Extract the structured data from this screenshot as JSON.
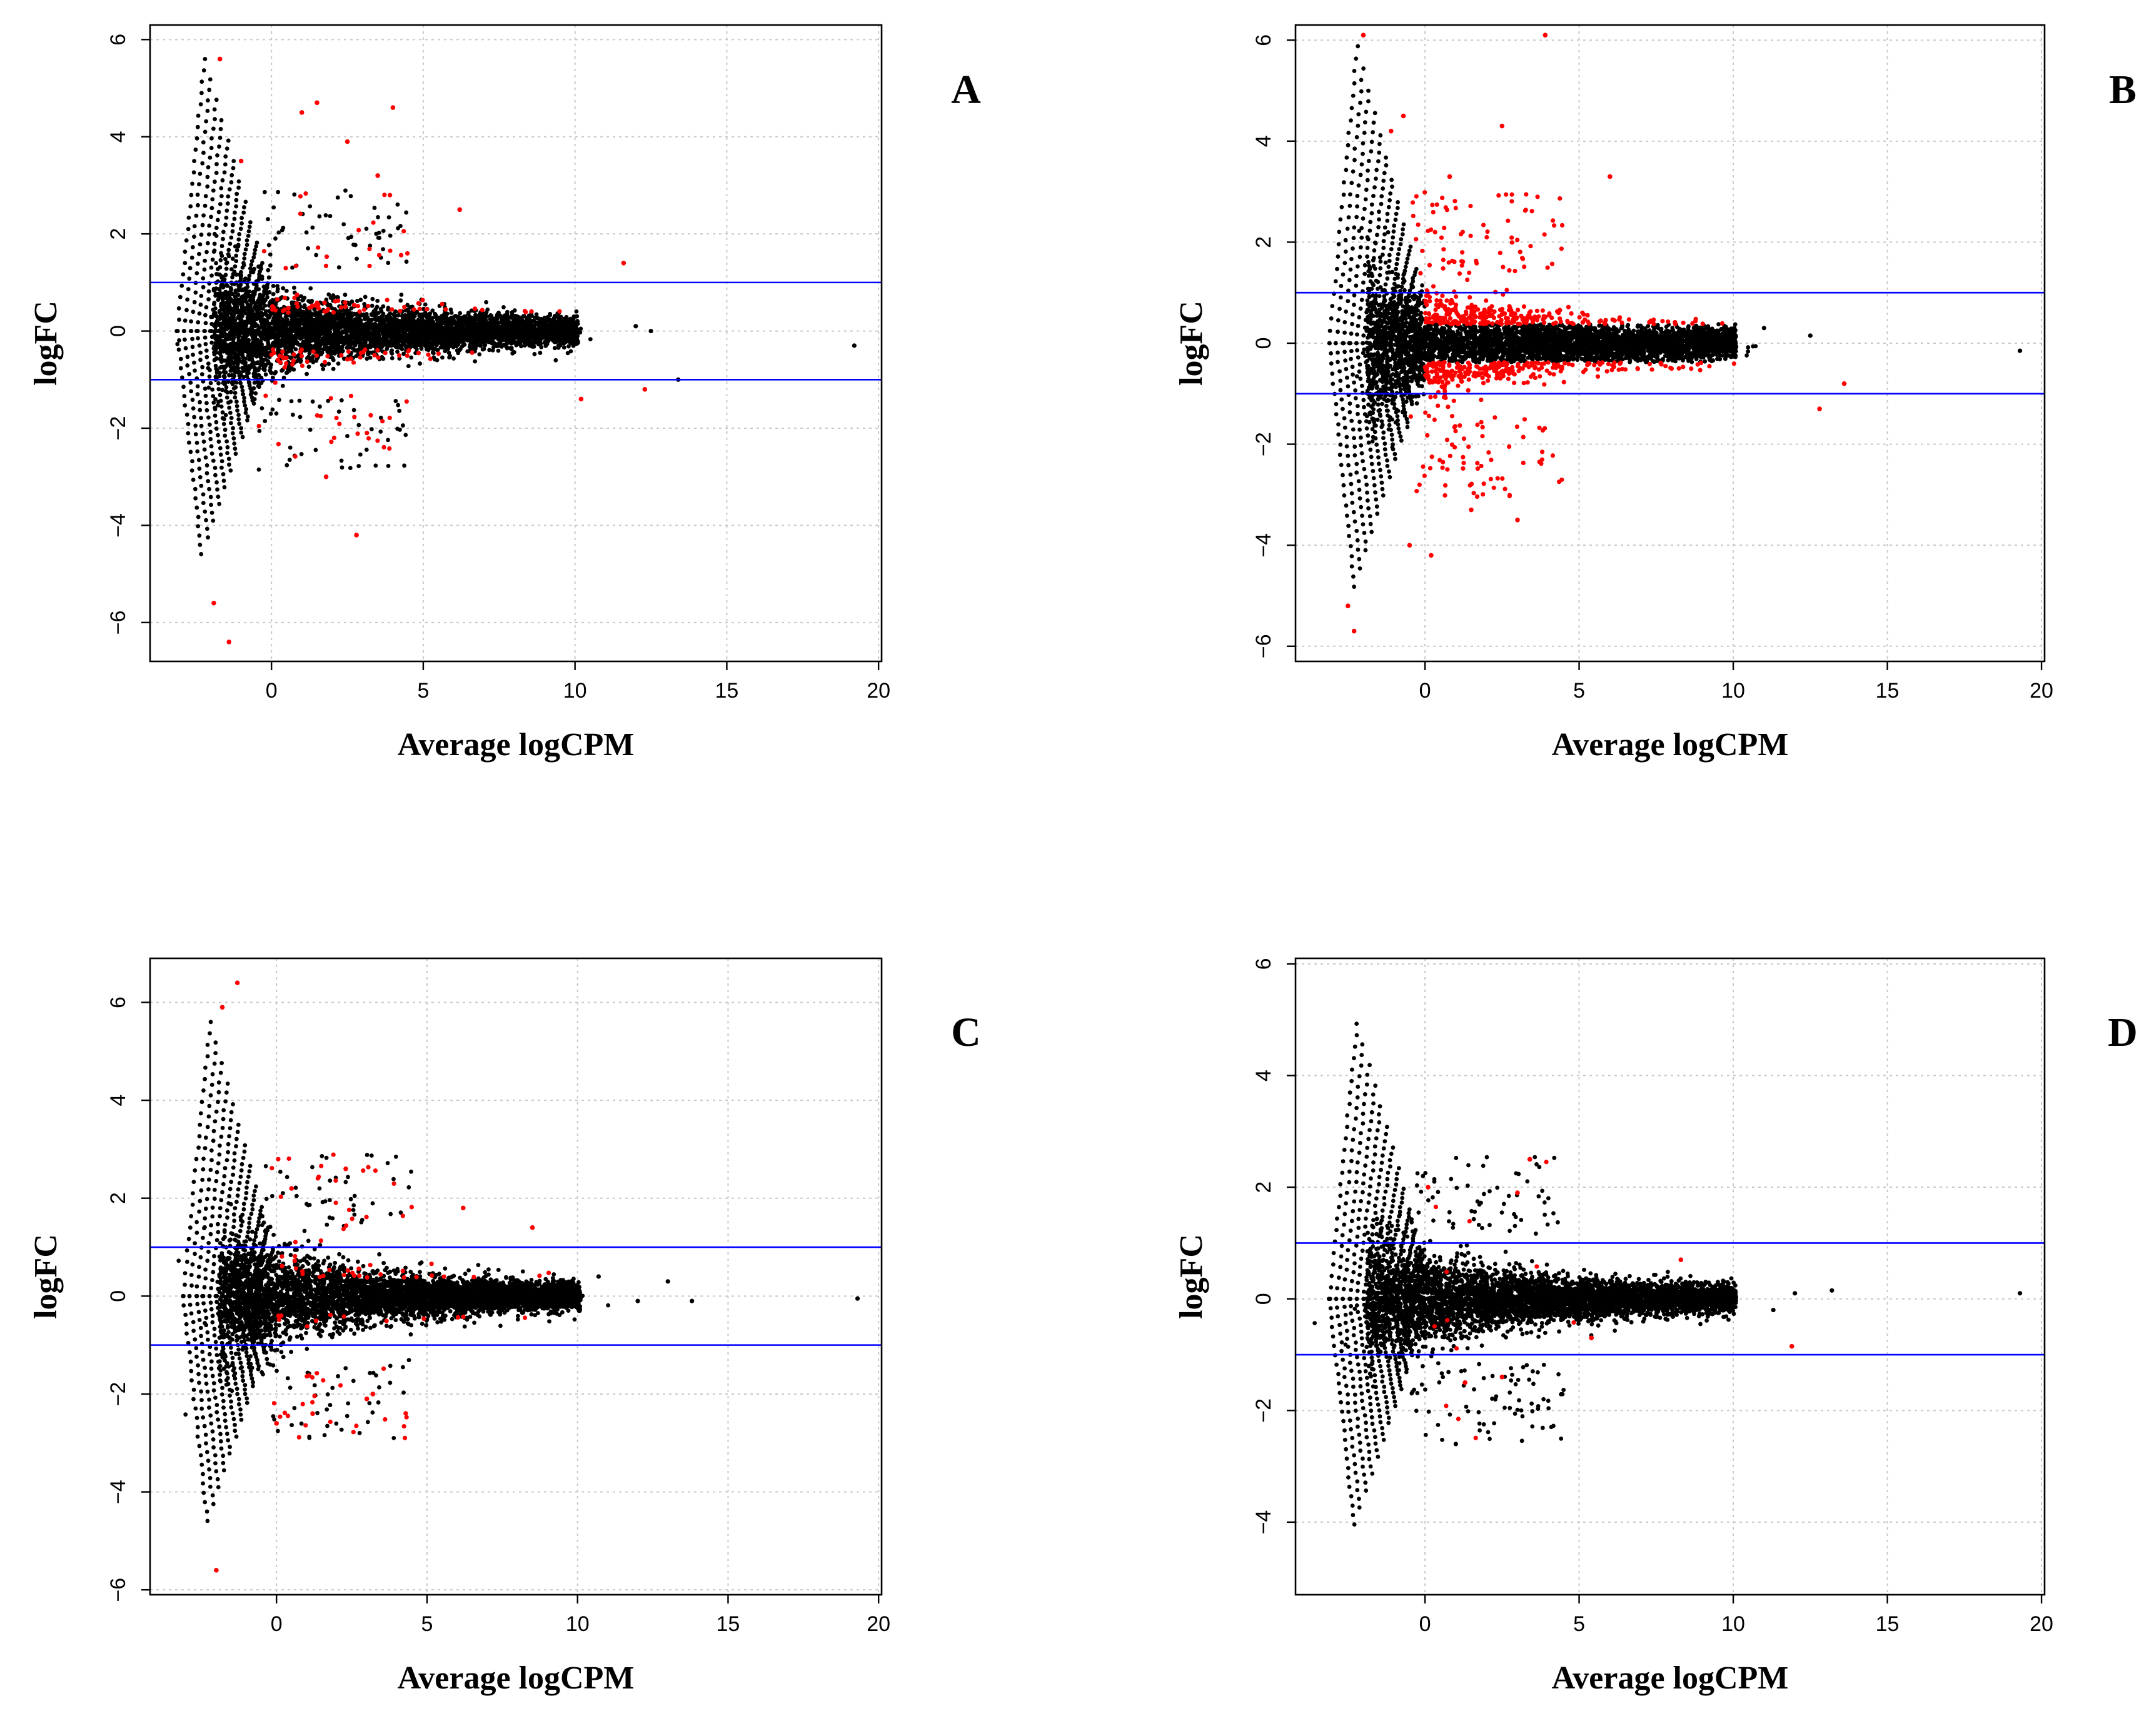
{
  "figure": {
    "dot_colors": {
      "not_significant": "#000000",
      "significant": "#ff0000"
    },
    "threshold_color": "#0000ff",
    "grid_color": "#c8c8c8"
  },
  "chart_data": [
    {
      "panel": "A",
      "type": "scatter",
      "xlabel": "Average logCPM",
      "ylabel": "logFC",
      "xlim": [
        -4,
        20.1
      ],
      "ylim": [
        -6.8,
        6.3
      ],
      "xticks": [
        0,
        5,
        10,
        15,
        20
      ],
      "yticks": [
        -6,
        -4,
        -2,
        0,
        2,
        4,
        6
      ],
      "threshold_lines": [
        1,
        -1
      ],
      "grid": true,
      "red_density": 0.03,
      "red_bias": 0,
      "spread": 1.0,
      "significant_points": [
        [
          -1.7,
          5.6
        ],
        [
          -1.9,
          -5.6
        ],
        [
          -1.4,
          -6.4
        ],
        [
          1.0,
          4.5
        ],
        [
          1.5,
          4.7
        ],
        [
          4.0,
          4.6
        ],
        [
          2.5,
          3.9
        ],
        [
          3.5,
          3.2
        ],
        [
          6.2,
          2.5
        ],
        [
          11.6,
          1.4
        ],
        [
          12.3,
          -1.2
        ],
        [
          10.2,
          -1.4
        ],
        [
          2.8,
          -4.2
        ],
        [
          1.8,
          -3.0
        ],
        [
          -1.0,
          3.5
        ]
      ],
      "outliers": [
        [
          19.2,
          -0.3
        ],
        [
          13.4,
          -1.0
        ],
        [
          12.0,
          0.1
        ],
        [
          12.5,
          0.0
        ]
      ]
    },
    {
      "panel": "B",
      "type": "scatter",
      "xlabel": "Average logCPM",
      "ylabel": "logFC",
      "xlim": [
        -4.2,
        20.1
      ],
      "ylim": [
        -6.3,
        6.3
      ],
      "xticks": [
        0,
        5,
        10,
        15,
        20
      ],
      "yticks": [
        -6,
        -4,
        -2,
        0,
        2,
        4,
        6
      ],
      "threshold_lines": [
        1,
        -1
      ],
      "grid": true,
      "red_density": 0.3,
      "red_bias": 0,
      "spread": 1.05,
      "significant_points": [
        [
          -2.0,
          6.1
        ],
        [
          3.9,
          6.1
        ],
        [
          -2.3,
          -5.7
        ],
        [
          -2.5,
          -5.2
        ],
        [
          -0.7,
          4.5
        ],
        [
          2.5,
          4.3
        ],
        [
          6.0,
          3.3
        ],
        [
          13.6,
          -0.8
        ],
        [
          12.8,
          -1.3
        ],
        [
          0.8,
          3.3
        ],
        [
          0.2,
          -4.2
        ],
        [
          -0.5,
          -4.0
        ],
        [
          3.0,
          -3.5
        ],
        [
          1.5,
          -3.3
        ],
        [
          -1.1,
          4.2
        ]
      ],
      "outliers": [
        [
          19.3,
          -0.15
        ],
        [
          12.5,
          0.15
        ],
        [
          11.0,
          0.3
        ]
      ]
    },
    {
      "panel": "C",
      "type": "scatter",
      "xlabel": "Average logCPM",
      "ylabel": "logFC",
      "xlim": [
        -4.2,
        20.1
      ],
      "ylim": [
        -6.1,
        6.9
      ],
      "xticks": [
        0,
        5,
        10,
        15,
        20
      ],
      "yticks": [
        -6,
        -4,
        -2,
        0,
        2,
        4,
        6
      ],
      "threshold_lines": [
        1,
        -1
      ],
      "grid": true,
      "red_density": 0.025,
      "red_bias": 0.7,
      "spread": 1.0,
      "significant_points": [
        [
          -1.3,
          6.4
        ],
        [
          -1.8,
          5.9
        ],
        [
          -2.0,
          -5.6
        ],
        [
          2.3,
          2.6
        ],
        [
          3.0,
          -2.1
        ],
        [
          3.2,
          -2.0
        ],
        [
          0.0,
          -2.6
        ],
        [
          6.2,
          1.8
        ],
        [
          8.5,
          1.4
        ],
        [
          0.5,
          2.2
        ],
        [
          1.2,
          -2.4
        ]
      ],
      "outliers": [
        [
          19.3,
          -0.05
        ],
        [
          13.8,
          -0.1
        ],
        [
          13.0,
          0.3
        ],
        [
          12.0,
          -0.1
        ],
        [
          10.7,
          0.4
        ]
      ]
    },
    {
      "panel": "D",
      "type": "scatter",
      "xlabel": "Average logCPM",
      "ylabel": "logFC",
      "xlim": [
        -4.2,
        20.1
      ],
      "ylim": [
        -5.3,
        6.1
      ],
      "xticks": [
        0,
        5,
        10,
        15,
        20
      ],
      "yticks": [
        -4,
        -2,
        0,
        2,
        4,
        6
      ],
      "threshold_lines": [
        1,
        -1
      ],
      "grid": true,
      "red_density": 0.004,
      "red_bias": 0,
      "spread": 0.88,
      "significant_points": [
        [
          3.4,
          2.5
        ],
        [
          3.0,
          1.9
        ],
        [
          11.9,
          -0.85
        ],
        [
          0.1,
          2.0
        ],
        [
          1.3,
          -1.5
        ],
        [
          2.5,
          -1.4
        ],
        [
          5.4,
          -0.7
        ],
        [
          8.3,
          0.7
        ]
      ],
      "outliers": [
        [
          19.3,
          0.1
        ],
        [
          13.2,
          0.15
        ],
        [
          12.0,
          0.1
        ],
        [
          11.3,
          -0.2
        ],
        [
          1.0,
          -2.6
        ]
      ]
    }
  ]
}
